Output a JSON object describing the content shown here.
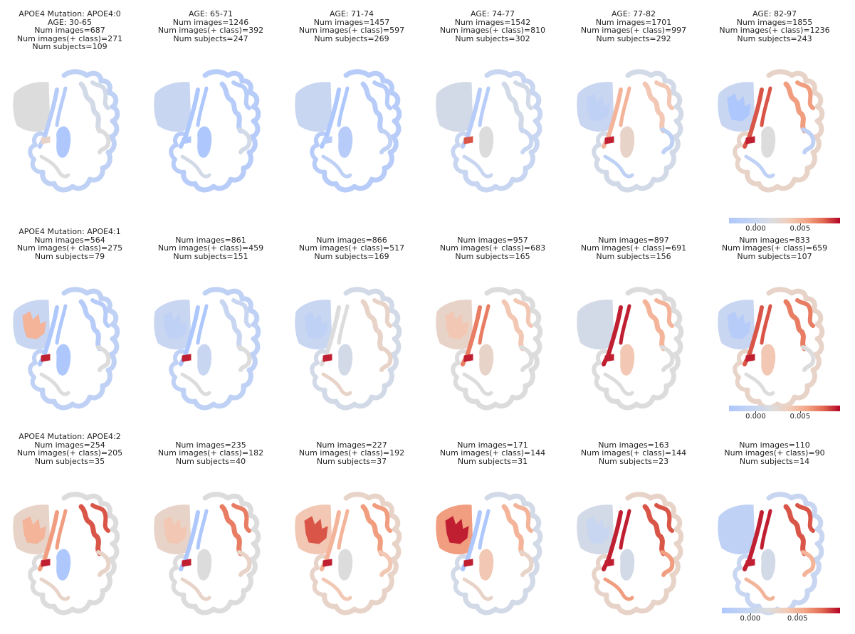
{
  "colors": {
    "low": "#aec7fd",
    "neutral": "#dddcdc",
    "high": "#b40426"
  },
  "colorbar_ticks": [
    "0.000",
    "0.005"
  ],
  "chart_data": {
    "type": "heatmap",
    "rows": [
      {
        "mutation_label": "APOE4 Mutation: APOE4:0",
        "panels": [
          {
            "age": "AGE: 30-65",
            "num_images": "Num images=687",
            "num_pos": "Num images(+ class)=271",
            "num_subjects": "Num subjects=109",
            "regions": {
              "cortex": -0.001,
              "cortex_dark": 0.001,
              "frontal": 0.002,
              "frontal_inner": 0.002,
              "insula": -0.002,
              "central": -0.003,
              "hotspot": 0.003,
              "temporal": 0.002
            }
          },
          {
            "age": "AGE: 65-71",
            "num_images": "Num images=1246",
            "num_pos": "Num images(+ class)=392",
            "num_subjects": "Num subjects=247",
            "regions": {
              "cortex": -0.002,
              "cortex_dark": -0.002,
              "frontal": 0.0,
              "frontal_inner": 0.0,
              "insula": -0.003,
              "central": -0.004,
              "hotspot": -0.003,
              "temporal": 0.001
            }
          },
          {
            "age": "AGE: 71-74",
            "num_images": "Num images=1457",
            "num_pos": "Num images(+ class)=597",
            "num_subjects": "Num subjects=269",
            "regions": {
              "cortex": -0.002,
              "cortex_dark": -0.002,
              "frontal": 0.0,
              "frontal_inner": 0.0,
              "insula": -0.003,
              "central": -0.002,
              "hotspot": -0.002,
              "temporal": -0.001
            }
          },
          {
            "age": "AGE: 74-77",
            "num_images": "Num images=1542",
            "num_pos": "Num images(+ class)=810",
            "num_subjects": "Num subjects=302",
            "regions": {
              "cortex": 0.0,
              "cortex_dark": 0.001,
              "frontal": 0.001,
              "frontal_inner": 0.001,
              "insula": -0.002,
              "central": 0.002,
              "hotspot": 0.008,
              "temporal": 0.0
            }
          },
          {
            "age": "AGE: 77-82",
            "num_images": "Num images=1701",
            "num_pos": "Num images(+ class)=997",
            "num_subjects": "Num subjects=292",
            "regions": {
              "cortex": 0.001,
              "cortex_dark": 0.004,
              "frontal": 0.0,
              "frontal_inner": -0.001,
              "insula": 0.005,
              "central": 0.003,
              "hotspot": 0.009,
              "temporal": -0.001
            }
          },
          {
            "age": "AGE: 82-97",
            "num_images": "Num images=1855",
            "num_pos": "Num images(+ class)=1236",
            "num_subjects": "Num subjects=243",
            "regions": {
              "cortex": 0.003,
              "cortex_dark": 0.006,
              "frontal": 0.0,
              "frontal_inner": -0.003,
              "insula": 0.008,
              "central": 0.002,
              "hotspot": 0.009,
              "temporal": -0.001
            }
          }
        ]
      },
      {
        "mutation_label": "APOE4 Mutation: APOE4:1",
        "panels": [
          {
            "age": "",
            "num_images": "Num images=564",
            "num_pos": "Num images(+ class)=275",
            "num_subjects": "Num subjects=79",
            "regions": {
              "cortex": -0.001,
              "cortex_dark": -0.002,
              "frontal": 0.0,
              "frontal_inner": 0.005,
              "insula": -0.003,
              "central": -0.003,
              "hotspot": 0.009,
              "temporal": 0.002
            }
          },
          {
            "age": "",
            "num_images": "Num images=861",
            "num_pos": "Num images(+ class)=459",
            "num_subjects": "Num subjects=151",
            "regions": {
              "cortex": -0.001,
              "cortex_dark": 0.0,
              "frontal": 0.0,
              "frontal_inner": -0.001,
              "insula": -0.003,
              "central": 0.0,
              "hotspot": 0.009,
              "temporal": 0.002
            }
          },
          {
            "age": "",
            "num_images": "Num images=866",
            "num_pos": "Num images(+ class)=517",
            "num_subjects": "Num subjects=169",
            "regions": {
              "cortex": 0.001,
              "cortex_dark": 0.003,
              "frontal": 0.0,
              "frontal_inner": -0.001,
              "insula": 0.002,
              "central": 0.001,
              "hotspot": 0.009,
              "temporal": 0.003
            }
          },
          {
            "age": "",
            "num_images": "Num images=957",
            "num_pos": "Num images(+ class)=683",
            "num_subjects": "Num subjects=165",
            "regions": {
              "cortex": 0.002,
              "cortex_dark": 0.004,
              "frontal": 0.003,
              "frontal_inner": 0.004,
              "insula": 0.007,
              "central": 0.003,
              "hotspot": 0.009,
              "temporal": 0.002
            }
          },
          {
            "age": "",
            "num_images": "Num images=897",
            "num_pos": "Num images(+ class)=691",
            "num_subjects": "Num subjects=156",
            "regions": {
              "cortex": 0.002,
              "cortex_dark": 0.005,
              "frontal": 0.001,
              "frontal_inner": 0.001,
              "insula": 0.009,
              "central": 0.004,
              "hotspot": 0.009,
              "temporal": 0.002
            }
          },
          {
            "age": "",
            "num_images": "Num images=833",
            "num_pos": "Num images(+ class)=659",
            "num_subjects": "Num subjects=107",
            "regions": {
              "cortex": 0.003,
              "cortex_dark": 0.007,
              "frontal": 0.0,
              "frontal_inner": -0.002,
              "insula": 0.008,
              "central": 0.004,
              "hotspot": 0.009,
              "temporal": 0.002
            }
          }
        ]
      },
      {
        "mutation_label": "APOE4 Mutation: APOE4:2",
        "panels": [
          {
            "age": "",
            "num_images": "Num images=254",
            "num_pos": "Num images(+ class)=205",
            "num_subjects": "Num subjects=35",
            "regions": {
              "cortex": 0.002,
              "cortex_dark": 0.008,
              "frontal": 0.003,
              "frontal_inner": 0.005,
              "insula": 0.006,
              "central": -0.003,
              "hotspot": 0.009,
              "temporal": 0.003
            }
          },
          {
            "age": "",
            "num_images": "Num images=235",
            "num_pos": "Num images(+ class)=182",
            "num_subjects": "Num subjects=40",
            "regions": {
              "cortex": 0.002,
              "cortex_dark": 0.007,
              "frontal": 0.003,
              "frontal_inner": 0.004,
              "insula": -0.003,
              "central": 0.002,
              "hotspot": 0.009,
              "temporal": 0.003
            }
          },
          {
            "age": "",
            "num_images": "Num images=227",
            "num_pos": "Num images(+ class)=192",
            "num_subjects": "Num subjects=37",
            "regions": {
              "cortex": 0.003,
              "cortex_dark": 0.006,
              "frontal": 0.004,
              "frontal_inner": 0.008,
              "insula": 0.005,
              "central": 0.002,
              "hotspot": 0.009,
              "temporal": 0.004
            }
          },
          {
            "age": "",
            "num_images": "Num images=171",
            "num_pos": "Num images(+ class)=144",
            "num_subjects": "Num subjects=31",
            "regions": {
              "cortex": 0.001,
              "cortex_dark": 0.005,
              "frontal": 0.006,
              "frontal_inner": 0.009,
              "insula": -0.004,
              "central": 0.004,
              "hotspot": 0.009,
              "temporal": 0.003
            }
          },
          {
            "age": "",
            "num_images": "Num images=163",
            "num_pos": "Num images(+ class)=144",
            "num_subjects": "Num subjects=23",
            "regions": {
              "cortex": 0.003,
              "cortex_dark": 0.008,
              "frontal": 0.001,
              "frontal_inner": 0.0,
              "insula": 0.009,
              "central": 0.001,
              "hotspot": 0.009,
              "temporal": 0.006
            }
          },
          {
            "age": "",
            "num_images": "Num images=110",
            "num_pos": "Num images(+ class)=90",
            "num_subjects": "Num subjects=14",
            "regions": {
              "cortex": 0.0,
              "cortex_dark": 0.008,
              "frontal": -0.001,
              "frontal_inner": -0.001,
              "insula": 0.009,
              "central": 0.001,
              "hotspot": 0.009,
              "temporal": 0.005
            }
          }
        ]
      }
    ],
    "colorbar": {
      "ticks": [
        0.0,
        0.005
      ],
      "range": [
        -0.003,
        0.0095
      ]
    }
  }
}
